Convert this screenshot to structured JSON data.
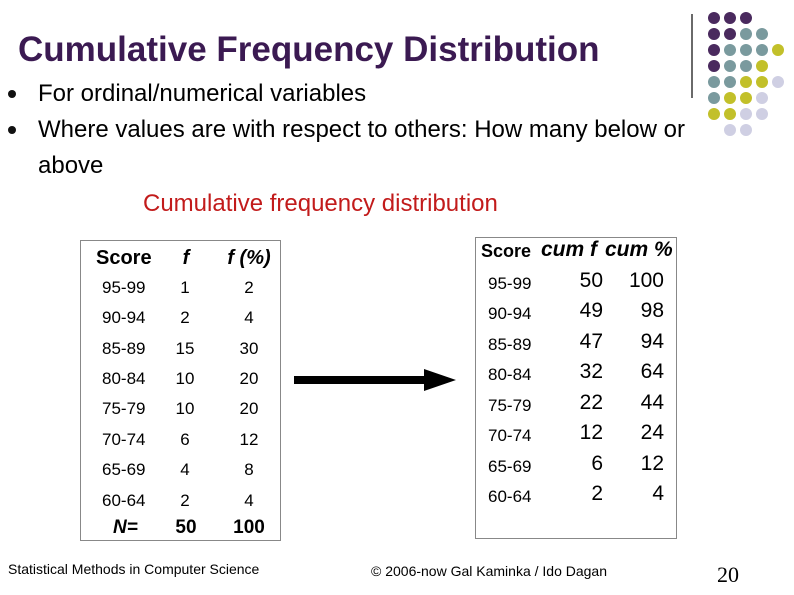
{
  "slide": {
    "title": "Cumulative Frequency Distribution",
    "bullets": [
      "For ordinal/numerical variables",
      "Where values are with respect to others: How many below or above"
    ],
    "subheading": "Cumulative frequency distribution",
    "colors": {
      "title": "#3b1a52",
      "subheading": "#c21b1b",
      "dot_purple": "#4a2a5e",
      "dot_teal": "#7a9a9e",
      "dot_olive": "#c2c02a",
      "dot_lavender": "#cfcfe3"
    }
  },
  "table_freq": {
    "headers": [
      "Score",
      "f",
      "f (%)"
    ],
    "rows": [
      [
        "95-99",
        "1",
        "2"
      ],
      [
        "90-94",
        "2",
        "4"
      ],
      [
        "85-89",
        "15",
        "30"
      ],
      [
        "80-84",
        "10",
        "20"
      ],
      [
        "75-79",
        "10",
        "20"
      ],
      [
        "70-74",
        "6",
        "12"
      ],
      [
        "65-69",
        "4",
        "8"
      ],
      [
        "60-64",
        "2",
        "4"
      ]
    ],
    "total": [
      "N=",
      "50",
      "100"
    ]
  },
  "table_cum": {
    "headers": [
      "Score",
      "cum f",
      "cum %"
    ],
    "rows": [
      [
        "95-99",
        "50",
        "100"
      ],
      [
        "90-94",
        "49",
        "98"
      ],
      [
        "85-89",
        "47",
        "94"
      ],
      [
        "80-84",
        "32",
        "64"
      ],
      [
        "75-79",
        "22",
        "44"
      ],
      [
        "70-74",
        "12",
        "24"
      ],
      [
        "65-69",
        "6",
        "12"
      ],
      [
        "60-64",
        "2",
        "4"
      ]
    ]
  },
  "footer": {
    "left": "Statistical Methods in Computer Science",
    "center": "© 2006-now  Gal Kaminka / Ido Dagan",
    "page_number": "20"
  }
}
